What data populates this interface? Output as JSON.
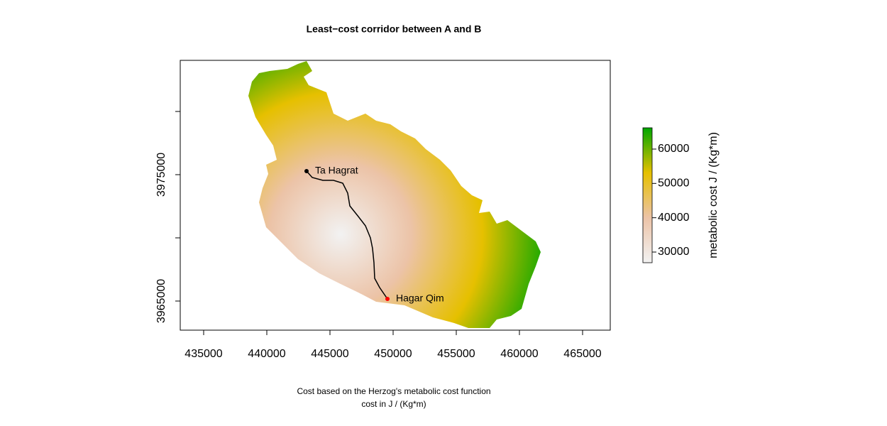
{
  "chart_data": {
    "type": "raster map",
    "title": "Least−cost corridor between A and B",
    "subtitle": [
      "Cost based on the Herzog's metabolic cost function",
      "cost in J / (Kg*m)"
    ],
    "xlim": [
      433146,
      467191
    ],
    "ylim": [
      3962697,
      3984045
    ],
    "xticks": [
      435000,
      440000,
      445000,
      450000,
      455000,
      460000,
      465000
    ],
    "yticks": [
      3965000,
      {
        "value": 3970000,
        "label": null
      },
      3975000,
      {
        "value": 3980000,
        "label": null
      }
    ],
    "path": {
      "x": [
        443146,
        443596,
        444438,
        445281,
        446011,
        446404,
        446573,
        447247,
        447809,
        448202,
        448371,
        448483,
        448539,
        448933,
        449551
      ],
      "y": [
        3975281,
        3974775,
        3974551,
        3974551,
        3974326,
        3973539,
        3972528,
        3971685,
        3970955,
        3970000,
        3969157,
        3968034,
        3966798,
        3966067,
        3965169
      ],
      "color": "#000000"
    },
    "points": [
      {
        "label": "Ta Hagrat",
        "color": "#000000",
        "x": 443146,
        "y": 3975281
      },
      {
        "label": "Hagar Qim",
        "color": "#ff0000",
        "x": 449551,
        "y": 3965169
      }
    ],
    "colorbar": {
      "label": "metabolic cost J / (Kg*m)",
      "lim": [
        26900,
        66200
      ],
      "ticks": [
        30000,
        40000,
        50000,
        60000
      ],
      "colors": [
        "#f2f2f2",
        "#ecc3a7",
        "#e6c000",
        "#00a600"
      ]
    }
  }
}
